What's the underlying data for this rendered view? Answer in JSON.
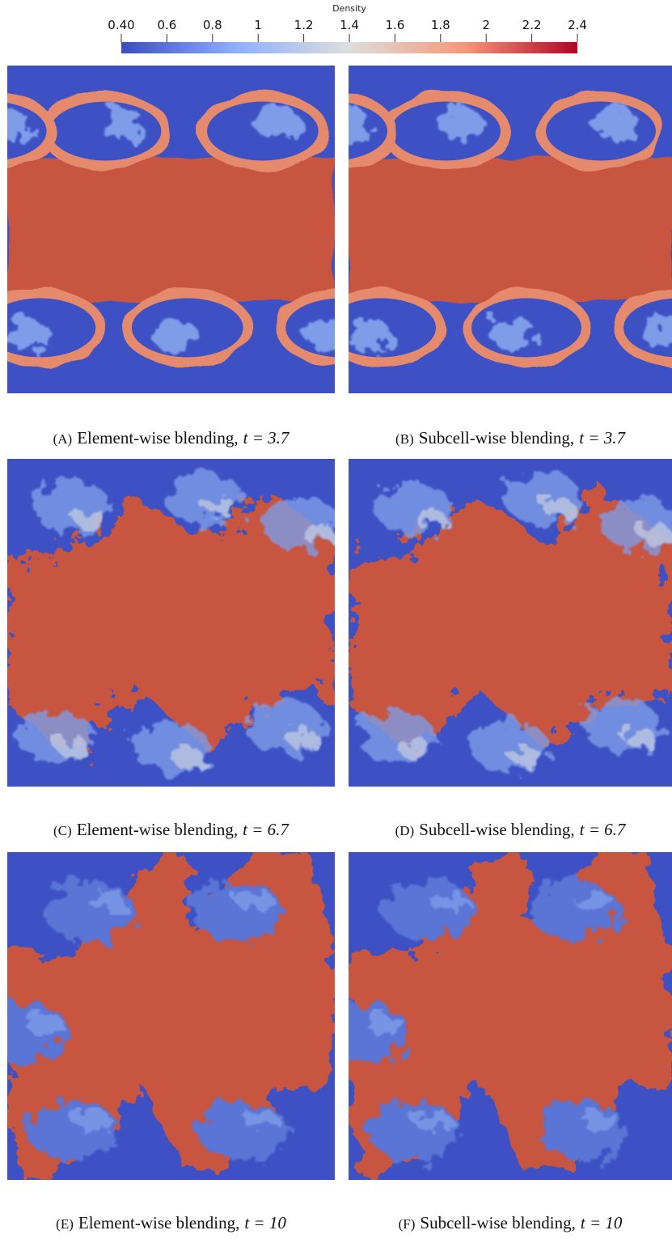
{
  "colorbar": {
    "title": "Density",
    "range": [
      0.4,
      2.4
    ],
    "ticks": [
      {
        "value": 0.4,
        "label": "0.40"
      },
      0.6,
      0.8,
      1,
      1.2,
      1.4,
      1.6,
      1.8,
      2,
      2.2,
      2.4
    ]
  },
  "panels": [
    {
      "label": "(A)",
      "method": "Element-wise blending,",
      "time": "t = 3.7"
    },
    {
      "label": "(B)",
      "method": "Subcell-wise blending,",
      "time": "t = 3.7"
    },
    {
      "label": "(C)",
      "method": "Element-wise blending,",
      "time": "t = 6.7"
    },
    {
      "label": "(D)",
      "method": "Subcell-wise blending,",
      "time": "t = 6.7"
    },
    {
      "label": "(E)",
      "method": "Element-wise blending,",
      "time": "t = 10"
    },
    {
      "label": "(F)",
      "method": "Subcell-wise blending,",
      "time": "t = 10"
    }
  ]
}
